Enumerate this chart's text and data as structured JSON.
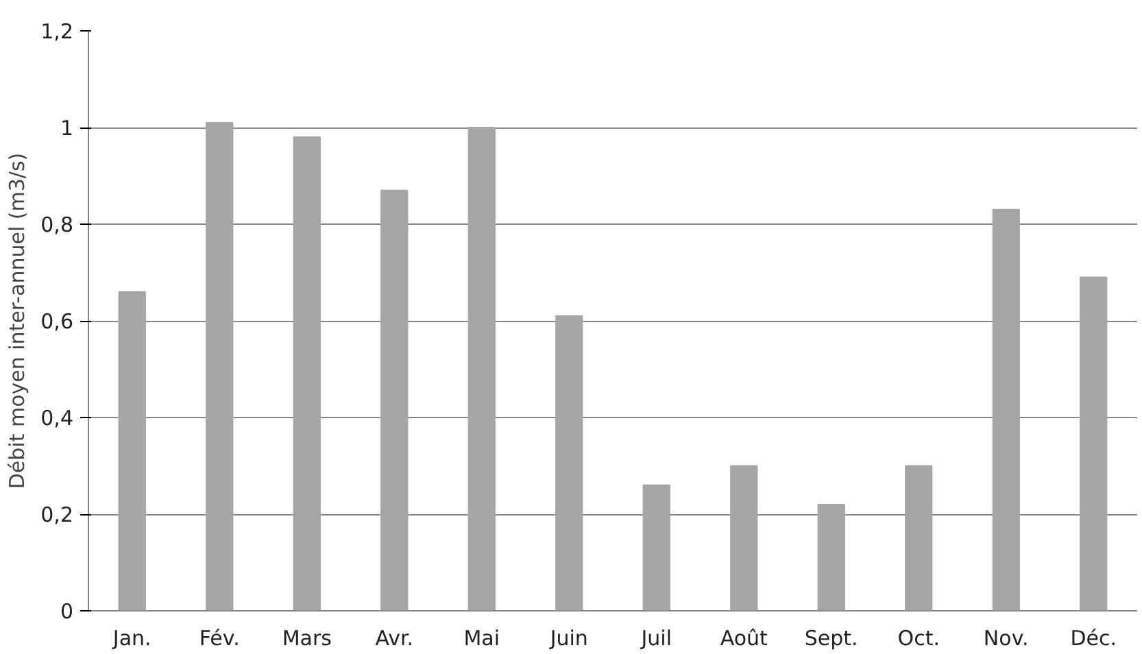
{
  "chart_data": {
    "type": "bar",
    "ylabel": "Débit moyen inter-annuel (m3/s)",
    "categories": [
      "Jan.",
      "Fév.",
      "Mars",
      "Avr.",
      "Mai",
      "Juin",
      "Juil",
      "Août",
      "Sept.",
      "Oct.",
      "Nov.",
      "Déc."
    ],
    "values": [
      0.66,
      1.01,
      0.98,
      0.87,
      1.0,
      0.61,
      0.26,
      0.3,
      0.22,
      0.3,
      0.83,
      0.69
    ],
    "color": "#a6a6a6",
    "ylim": [
      0,
      1.2
    ],
    "yticks": [
      0,
      {
        "value": 0.2,
        "label": "0,2"
      },
      {
        "value": 0.4,
        "label": "0,4"
      },
      {
        "value": 0.6,
        "label": "0,6"
      },
      {
        "value": 0.8,
        "label": "0,8"
      },
      1,
      {
        "value": 1.2,
        "label": "1,2"
      }
    ],
    "grid": "y"
  }
}
